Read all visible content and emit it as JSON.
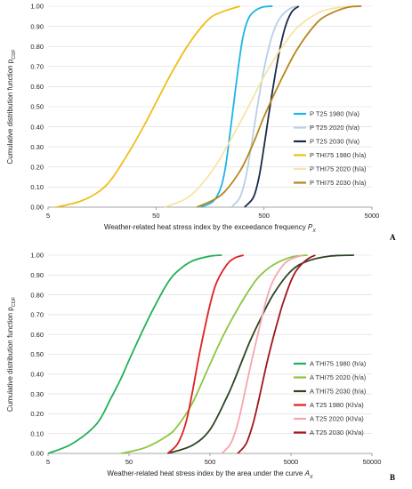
{
  "chart_data": [
    {
      "type": "line",
      "panel_label": "A",
      "ylabel": "Cumulative distribution function p",
      "ylabel_sub": "CDF",
      "xlabel": "Weather-related heat stress index by the exceedance frequency P",
      "xlabel_sub": "X",
      "x_scale": "log",
      "xlim": [
        5,
        5000
      ],
      "ylim": [
        0,
        1
      ],
      "x_ticks": [
        5,
        50,
        500,
        5000
      ],
      "x_tick_labels": [
        "5",
        "50",
        "500",
        "5000"
      ],
      "y_ticks": [
        0,
        0.1,
        0.2,
        0.3,
        0.4,
        0.5,
        0.6,
        0.7,
        0.8,
        0.9,
        1.0
      ],
      "y_tick_labels": [
        "0.00",
        "0.10",
        "0.20",
        "0.30",
        "0.40",
        "0.50",
        "0.60",
        "0.70",
        "0.80",
        "0.90",
        "1.00"
      ],
      "grid": "horizontal",
      "legend_position": "right",
      "series": [
        {
          "name": "P T25  1980 (h/a)",
          "color": "#1fb4e6",
          "width": 1.8,
          "x": [
            130,
            170,
            200,
            220,
            240,
            260,
            290,
            320,
            360,
            420,
            500,
            600
          ],
          "y": [
            0.0,
            0.03,
            0.1,
            0.2,
            0.35,
            0.5,
            0.7,
            0.85,
            0.94,
            0.98,
            0.997,
            1.0
          ]
        },
        {
          "name": "P T25  2020 (h/a)",
          "color": "#b8cfe6",
          "width": 1.8,
          "x": [
            250,
            300,
            340,
            380,
            420,
            460,
            520,
            600,
            700,
            850,
            1000
          ],
          "y": [
            0.0,
            0.05,
            0.15,
            0.3,
            0.45,
            0.58,
            0.73,
            0.86,
            0.94,
            0.985,
            1.0
          ]
        },
        {
          "name": "P T25  2030 (h/a)",
          "color": "#1a2b4a",
          "width": 1.8,
          "x": [
            330,
            400,
            450,
            500,
            550,
            600,
            680,
            780,
            900,
            1050
          ],
          "y": [
            0.0,
            0.05,
            0.15,
            0.3,
            0.45,
            0.58,
            0.75,
            0.89,
            0.97,
            1.0
          ]
        },
        {
          "name": "P THI75  1980 (h/a)",
          "color": "#f0be1a",
          "width": 1.8,
          "x": [
            6,
            10,
            15,
            20,
            30,
            40,
            50,
            70,
            100,
            150,
            200,
            300
          ],
          "y": [
            0.0,
            0.03,
            0.08,
            0.15,
            0.3,
            0.42,
            0.52,
            0.67,
            0.81,
            0.93,
            0.97,
            1.0
          ]
        },
        {
          "name": "P THI75  2020 (h/a)",
          "color": "#f7e4a6",
          "width": 1.8,
          "x": [
            60,
            100,
            150,
            200,
            300,
            400,
            500,
            700,
            1000,
            1500,
            2000,
            3000
          ],
          "y": [
            0.0,
            0.05,
            0.15,
            0.25,
            0.42,
            0.55,
            0.65,
            0.78,
            0.89,
            0.96,
            0.985,
            1.0
          ]
        },
        {
          "name": "P THI75  2030 (h/a)",
          "color": "#b8861a",
          "width": 1.8,
          "x": [
            120,
            200,
            300,
            400,
            500,
            700,
            1000,
            1500,
            2000,
            3000,
            4000
          ],
          "y": [
            0.0,
            0.06,
            0.18,
            0.32,
            0.45,
            0.62,
            0.78,
            0.91,
            0.96,
            0.995,
            1.0
          ]
        }
      ]
    },
    {
      "type": "line",
      "panel_label": "B",
      "ylabel": "Cumulative distribution function p",
      "ylabel_sub": "CDF",
      "xlabel": "Weather-related heat stress index by the area under the curve A",
      "xlabel_sub": "X",
      "x_scale": "log",
      "xlim": [
        5,
        50000
      ],
      "ylim": [
        0,
        1
      ],
      "x_ticks": [
        5,
        50,
        500,
        5000,
        50000
      ],
      "x_tick_labels": [
        "5",
        "50",
        "500",
        "5000",
        "50000"
      ],
      "y_ticks": [
        0,
        0.1,
        0.2,
        0.3,
        0.4,
        0.5,
        0.6,
        0.7,
        0.8,
        0.9,
        1.0
      ],
      "y_tick_labels": [
        "0.00",
        "0.10",
        "0.20",
        "0.30",
        "0.40",
        "0.50",
        "0.60",
        "0.70",
        "0.80",
        "0.90",
        "1.00"
      ],
      "grid": "horizontal",
      "legend_position": "right",
      "series": [
        {
          "name": "A  THI75  1980 (h/a)",
          "color": "#22b05a",
          "width": 1.8,
          "x": [
            5,
            10,
            20,
            30,
            40,
            50,
            70,
            100,
            150,
            200,
            300,
            500,
            700
          ],
          "y": [
            0.0,
            0.05,
            0.15,
            0.28,
            0.38,
            0.47,
            0.6,
            0.73,
            0.86,
            0.92,
            0.97,
            0.995,
            1.0
          ]
        },
        {
          "name": "A  THI75  2020 (h/a)",
          "color": "#8cc63f",
          "width": 1.8,
          "x": [
            40,
            80,
            150,
            200,
            300,
            500,
            700,
            1000,
            1500,
            2000,
            3000,
            5000,
            8000
          ],
          "y": [
            0.0,
            0.03,
            0.09,
            0.14,
            0.25,
            0.45,
            0.58,
            0.7,
            0.82,
            0.89,
            0.95,
            0.99,
            1.0
          ]
        },
        {
          "name": "A  THI75  2030 (h/a)",
          "color": "#2e4420",
          "width": 1.8,
          "x": [
            150,
            300,
            500,
            800,
            1000,
            1500,
            2000,
            3000,
            5000,
            8000,
            15000,
            30000
          ],
          "y": [
            0.0,
            0.04,
            0.12,
            0.28,
            0.37,
            0.55,
            0.66,
            0.8,
            0.92,
            0.97,
            0.995,
            1.0
          ]
        },
        {
          "name": "A T25  1980 (Kh/a)",
          "color": "#e02020",
          "width": 1.8,
          "x": [
            150,
            200,
            250,
            300,
            350,
            400,
            500,
            600,
            800,
            1000,
            1300
          ],
          "y": [
            0.0,
            0.05,
            0.15,
            0.3,
            0.45,
            0.57,
            0.75,
            0.86,
            0.95,
            0.985,
            1.0
          ]
        },
        {
          "name": "A T25  2020 (Kh/a)",
          "color": "#f4a6b0",
          "width": 1.8,
          "x": [
            700,
            900,
            1100,
            1300,
            1600,
            2000,
            2500,
            3000,
            4000,
            5000,
            7000
          ],
          "y": [
            0.0,
            0.05,
            0.15,
            0.28,
            0.45,
            0.62,
            0.78,
            0.87,
            0.95,
            0.98,
            1.0
          ]
        },
        {
          "name": "A T25  2030 (Kh/a)",
          "color": "#a3141e",
          "width": 1.8,
          "x": [
            1100,
            1400,
            1700,
            2000,
            2500,
            3000,
            3500,
            4000,
            5000,
            6000,
            8000,
            10000
          ],
          "y": [
            0.0,
            0.05,
            0.15,
            0.27,
            0.45,
            0.58,
            0.68,
            0.76,
            0.87,
            0.93,
            0.98,
            1.0
          ]
        }
      ]
    }
  ]
}
